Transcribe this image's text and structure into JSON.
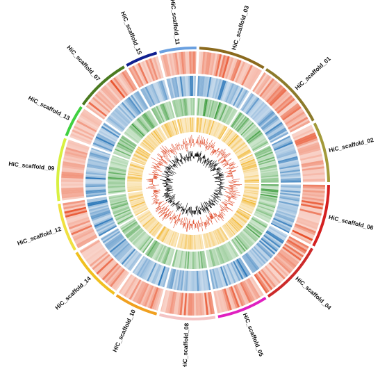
{
  "chart_data": {
    "type": "circos",
    "segments": [
      {
        "label": "HiC_scaffold_03",
        "start": 2,
        "end": 32,
        "color": "#8b6a1e"
      },
      {
        "label": "HiC_scaffold_01",
        "start": 32,
        "end": 63,
        "color": "#8c7a2a"
      },
      {
        "label": "HiC_scaffold_02",
        "start": 63,
        "end": 90,
        "color": "#a39a3a"
      },
      {
        "label": "HiC_scaffold_06",
        "start": 90,
        "end": 118,
        "color": "#d42020"
      },
      {
        "label": "HiC_scaffold_04",
        "start": 118,
        "end": 147,
        "color": "#cc2a2a"
      },
      {
        "label": "HiC_scaffold_05",
        "start": 147,
        "end": 170,
        "color": "#e020c0"
      },
      {
        "label": "HiC_scaffold_08",
        "start": 170,
        "end": 195,
        "color": "#f4c4c4"
      },
      {
        "label": "HiC_scaffold_10",
        "start": 195,
        "end": 215,
        "color": "#f0a020"
      },
      {
        "label": "HiC_scaffold_14",
        "start": 215,
        "end": 240,
        "color": "#f0c020"
      },
      {
        "label": "HiC_scaffold_12",
        "start": 240,
        "end": 262,
        "color": "#f0e040"
      },
      {
        "label": "HiC_scaffold_09",
        "start": 262,
        "end": 290,
        "color": "#d8f040"
      },
      {
        "label": "HiC_scaffold_13",
        "start": 290,
        "end": 305,
        "color": "#40d040"
      },
      {
        "label": "HiC_scaffold_07",
        "start": 305,
        "end": 330,
        "color": "#4a7a20"
      },
      {
        "label": "HiC_scaffold_15",
        "start": 330,
        "end": 345,
        "color": "#102090"
      },
      {
        "label": "HiC_scaffold_11",
        "start": 345,
        "end": 362,
        "color": "#6aa0e0"
      }
    ],
    "tracks": [
      {
        "kind": "heatmap",
        "color": "#e8502a"
      },
      {
        "kind": "heatmap",
        "color": "#1f6fb4"
      },
      {
        "kind": "heatmap",
        "color": "#3a9a3a"
      },
      {
        "kind": "heatmap",
        "color": "#f0b020"
      },
      {
        "kind": "line",
        "color": "#e05030"
      },
      {
        "kind": "line",
        "color": "#111111"
      }
    ]
  }
}
